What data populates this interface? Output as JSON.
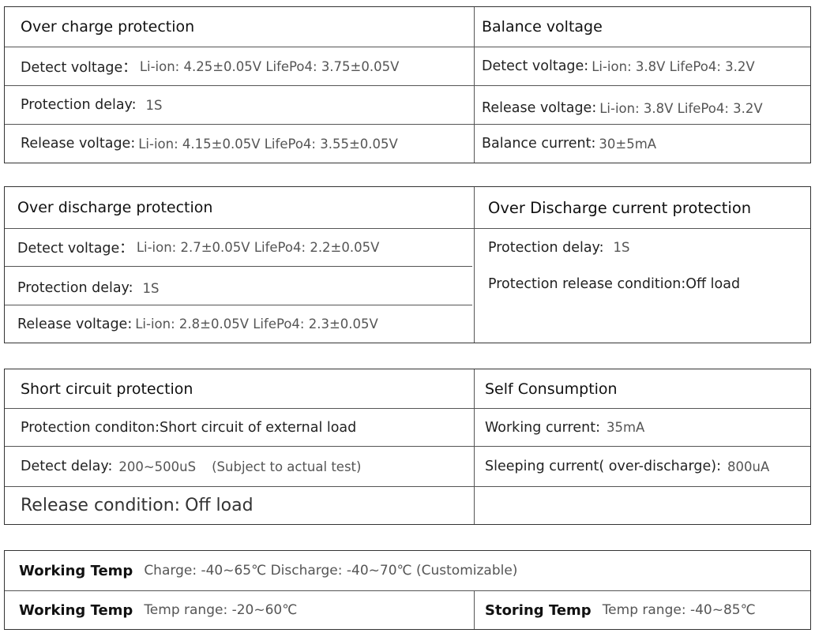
{
  "charge": {
    "title": "Over charge protection",
    "detect_label": "Detect voltage：",
    "detect_value": "Li-ion: 4.25±0.05V  LifePo4: 3.75±0.05V",
    "delay_label": "Protection delay:",
    "delay_value": "1S",
    "release_label": "Release voltage:",
    "release_value": "Li-ion: 4.15±0.05V  LifePo4: 3.55±0.05V"
  },
  "balance": {
    "title": "Balance  voltage",
    "detect_label": "Detect voltage:",
    "detect_value": "Li-ion: 3.8V  LifePo4: 3.2V",
    "release_label": "Release voltage:",
    "release_value": "Li-ion: 3.8V  LifePo4: 3.2V",
    "current_label": "Balance current:",
    "current_value": "30±5mA"
  },
  "discharge": {
    "title": "Over discharge protection",
    "detect_label": "Detect voltage：",
    "detect_value": "Li-ion:  2.7±0.05V  LifePo4: 2.2±0.05V",
    "delay_label": "Protection delay:",
    "delay_value": "1S",
    "release_label": "Release voltage:",
    "release_value": "Li-ion: 2.8±0.05V   LifePo4: 2.3±0.05V"
  },
  "discharge_current": {
    "title": "Over  Discharge current protection",
    "delay_label": "Protection delay:",
    "delay_value": "1S",
    "release_label": "Protection release condition:Off load"
  },
  "short": {
    "title": "Short circuit protection",
    "condition_label": "Protection conditon:Short circuit of external load",
    "delay_label": "Detect delay:",
    "delay_value": "200~500uS",
    "delay_note": "(Subject to actual test)",
    "release_label": "Release condition:",
    "release_value": "Off load"
  },
  "self_consumption": {
    "title": "Self Consumption",
    "working_label": "Working current:",
    "working_value": "35mA",
    "sleeping_label": "Sleeping current( over-discharge):",
    "sleeping_value": "800uA"
  },
  "temp": {
    "working_label": "Working Temp",
    "working_charge": "Charge: -40~65℃  Discharge: -40~70℃ (Customizable)",
    "working2_label": "Working Temp",
    "working2_range": "Temp range: -20~60℃",
    "storing_label": "Storing Temp",
    "storing_range": "Temp range: -40~85℃"
  }
}
